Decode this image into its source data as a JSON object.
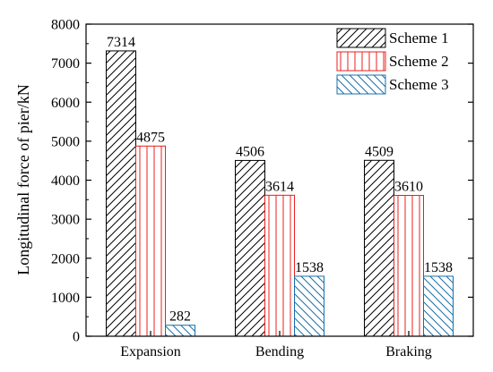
{
  "chart_data": {
    "type": "bar",
    "title": "",
    "xlabel": "",
    "ylabel": "Longitudinal force of pier/kN",
    "ylim": [
      0,
      8000
    ],
    "yticks": [
      0,
      1000,
      2000,
      3000,
      4000,
      5000,
      6000,
      7000,
      8000
    ],
    "categories": [
      "Expansion",
      "Bending",
      "Braking"
    ],
    "series": [
      {
        "name": "Scheme 1",
        "values": [
          7314,
          4506,
          4509
        ],
        "color": "#000000",
        "hatch": "diagonal-forward"
      },
      {
        "name": "Scheme 2",
        "values": [
          4875,
          3614,
          3610
        ],
        "color": "#e8201c",
        "hatch": "vertical"
      },
      {
        "name": "Scheme 3",
        "values": [
          282,
          1538,
          1538
        ],
        "color": "#1a6fa8",
        "hatch": "diagonal-backward"
      }
    ],
    "data_labels": [
      [
        "7314",
        "4506",
        "4509"
      ],
      [
        "4875",
        "3614",
        "3610"
      ],
      [
        "282",
        "1538",
        "1538"
      ]
    ],
    "legend_position": "top-right",
    "grid": false
  }
}
